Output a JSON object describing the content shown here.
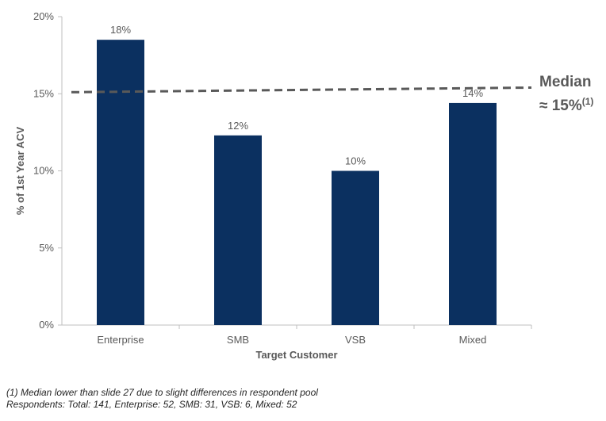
{
  "chart_data": {
    "type": "bar",
    "categories": [
      "Enterprise",
      "SMB",
      "VSB",
      "Mixed"
    ],
    "values": [
      18.5,
      12.3,
      10.0,
      14.4
    ],
    "data_labels": [
      "18%",
      "12%",
      "10%",
      "14%"
    ],
    "xlabel": "Target Customer",
    "ylabel": "% of 1st Year ACV",
    "ylim": [
      0,
      20
    ],
    "yticks": [
      0,
      5,
      10,
      15,
      20
    ],
    "ytick_labels": [
      "0%",
      "5%",
      "10%",
      "15%",
      "20%"
    ],
    "bar_color": "#0B3060",
    "grid": false,
    "reference_line": {
      "style": "dashed",
      "color": "#595959",
      "y_start": 15.1,
      "y_end": 15.4,
      "label_line1": "Median",
      "label_line2": "≈ 15%",
      "label_footnote_ref": "(1)"
    }
  },
  "footnotes": {
    "line1": "(1) Median lower than slide 27 due to slight differences in respondent pool",
    "line2": "Respondents: Total: 141, Enterprise: 52, SMB: 31, VSB: 6, Mixed: 52"
  }
}
